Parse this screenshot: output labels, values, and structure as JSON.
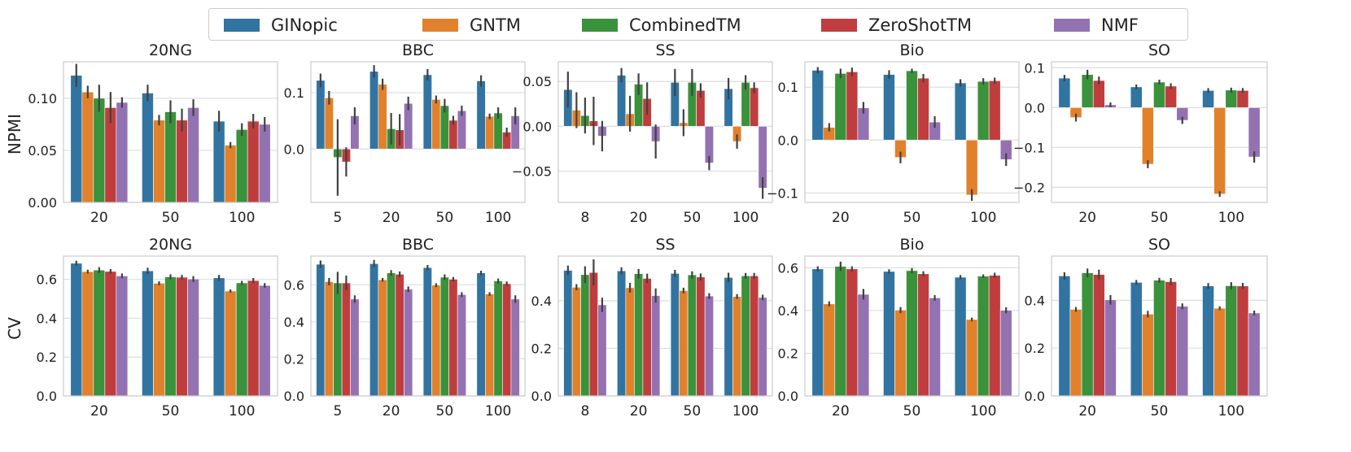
{
  "legend": {
    "entries": [
      {
        "label": "GINopic",
        "color": "#3274a1"
      },
      {
        "label": "GNTM",
        "color": "#e1812c"
      },
      {
        "label": "CombinedTM",
        "color": "#3a923a"
      },
      {
        "label": "ZeroShotTM",
        "color": "#c03d3e"
      },
      {
        "label": "NMF",
        "color": "#9372b2"
      }
    ]
  },
  "row_labels": [
    "NPMI",
    "CV"
  ],
  "chart_data": [
    {
      "type": "bar",
      "title": "20NG",
      "metric": "NPMI",
      "categories": [
        "20",
        "50",
        "100"
      ],
      "ylim": [
        0,
        0.135
      ],
      "yticks": [
        0.0,
        0.05,
        0.1
      ],
      "ytick_labels": [
        "0.00",
        "0.05",
        "0.10"
      ],
      "series": [
        {
          "name": "GINopic",
          "values": [
            0.122,
            0.105,
            0.078
          ],
          "err": [
            0.011,
            0.008,
            0.01
          ]
        },
        {
          "name": "GNTM",
          "values": [
            0.106,
            0.079,
            0.055
          ],
          "err": [
            0.006,
            0.005,
            0.003
          ]
        },
        {
          "name": "CombinedTM",
          "values": [
            0.1,
            0.087,
            0.07
          ],
          "err": [
            0.013,
            0.011,
            0.006
          ]
        },
        {
          "name": "ZeroShotTM",
          "values": [
            0.091,
            0.079,
            0.078
          ],
          "err": [
            0.015,
            0.011,
            0.007
          ]
        },
        {
          "name": "NMF",
          "values": [
            0.096,
            0.091,
            0.075
          ],
          "err": [
            0.005,
            0.008,
            0.007
          ]
        }
      ]
    },
    {
      "type": "bar",
      "title": "BBC",
      "metric": "NPMI",
      "categories": [
        "5",
        "20",
        "50",
        "100"
      ],
      "ylim": [
        -0.095,
        0.155
      ],
      "yticks": [
        0.0,
        0.1
      ],
      "ytick_labels": [
        "0.0",
        "0.1"
      ],
      "series": [
        {
          "name": "GINopic",
          "values": [
            0.122,
            0.138,
            0.132,
            0.121
          ],
          "err": [
            0.012,
            0.011,
            0.01,
            0.01
          ]
        },
        {
          "name": "GNTM",
          "values": [
            0.091,
            0.115,
            0.088,
            0.058
          ],
          "err": [
            0.012,
            0.01,
            0.007,
            0.005
          ]
        },
        {
          "name": "CombinedTM",
          "values": [
            -0.015,
            0.036,
            0.077,
            0.064
          ],
          "err": [
            0.068,
            0.028,
            0.012,
            0.01
          ]
        },
        {
          "name": "ZeroShotTM",
          "values": [
            -0.023,
            0.034,
            0.051,
            0.03
          ],
          "err": [
            0.026,
            0.028,
            0.008,
            0.008
          ]
        },
        {
          "name": "NMF",
          "values": [
            0.059,
            0.081,
            0.068,
            0.059
          ],
          "err": [
            0.015,
            0.012,
            0.009,
            0.015
          ]
        }
      ]
    },
    {
      "type": "bar",
      "title": "SS",
      "metric": "NPMI",
      "categories": [
        "8",
        "20",
        "50",
        "100"
      ],
      "ylim": [
        -0.085,
        0.072
      ],
      "yticks": [
        -0.05,
        0.0,
        0.05
      ],
      "ytick_labels": [
        "−0.05",
        "0.00",
        "0.05"
      ],
      "series": [
        {
          "name": "GINopic",
          "values": [
            0.041,
            0.057,
            0.049,
            0.042
          ],
          "err": [
            0.02,
            0.008,
            0.015,
            0.012
          ]
        },
        {
          "name": "GNTM",
          "values": [
            0.018,
            0.014,
            0.004,
            -0.017
          ],
          "err": [
            0.02,
            0.02,
            0.015,
            0.008
          ]
        },
        {
          "name": "CombinedTM",
          "values": [
            0.012,
            0.047,
            0.049,
            0.049
          ],
          "err": [
            0.02,
            0.012,
            0.015,
            0.008
          ]
        },
        {
          "name": "ZeroShotTM",
          "values": [
            0.006,
            0.031,
            0.04,
            0.043
          ],
          "err": [
            0.027,
            0.018,
            0.008,
            0.006
          ]
        },
        {
          "name": "NMF",
          "values": [
            -0.011,
            -0.017,
            -0.041,
            -0.069
          ],
          "err": [
            0.017,
            0.019,
            0.008,
            0.012
          ]
        }
      ]
    },
    {
      "type": "bar",
      "title": "Bio",
      "metric": "NPMI",
      "categories": [
        "20",
        "50",
        "100"
      ],
      "ylim": [
        -0.118,
        0.148
      ],
      "yticks": [
        -0.1,
        0.0,
        0.1
      ],
      "ytick_labels": [
        "−0.1",
        "0.0",
        "0.1"
      ],
      "series": [
        {
          "name": "GINopic",
          "values": [
            0.132,
            0.124,
            0.108
          ],
          "err": [
            0.006,
            0.008,
            0.007
          ]
        },
        {
          "name": "GNTM",
          "values": [
            0.024,
            -0.033,
            -0.104
          ],
          "err": [
            0.008,
            0.011,
            0.011
          ]
        },
        {
          "name": "CombinedTM",
          "values": [
            0.126,
            0.131,
            0.111
          ],
          "err": [
            0.009,
            0.004,
            0.006
          ]
        },
        {
          "name": "ZeroShotTM",
          "values": [
            0.129,
            0.117,
            0.112
          ],
          "err": [
            0.008,
            0.008,
            0.006
          ]
        },
        {
          "name": "NMF",
          "values": [
            0.061,
            0.034,
            -0.037
          ],
          "err": [
            0.011,
            0.011,
            0.012
          ]
        }
      ]
    },
    {
      "type": "bar",
      "title": "SO",
      "metric": "NPMI",
      "categories": [
        "20",
        "50",
        "100"
      ],
      "ylim": [
        -0.238,
        0.115
      ],
      "yticks": [
        -0.2,
        -0.1,
        0.0,
        0.1
      ],
      "ytick_labels": [
        "−0.2",
        "−0.1",
        "0.0",
        "0.1"
      ],
      "series": [
        {
          "name": "GINopic",
          "values": [
            0.074,
            0.052,
            0.043
          ],
          "err": [
            0.008,
            0.006,
            0.006
          ]
        },
        {
          "name": "GNTM",
          "values": [
            -0.025,
            -0.142,
            -0.217
          ],
          "err": [
            0.01,
            0.01,
            0.007
          ]
        },
        {
          "name": "CombinedTM",
          "values": [
            0.083,
            0.064,
            0.044
          ],
          "err": [
            0.012,
            0.006,
            0.006
          ]
        },
        {
          "name": "ZeroShotTM",
          "values": [
            0.068,
            0.054,
            0.043
          ],
          "err": [
            0.01,
            0.007,
            0.006
          ]
        },
        {
          "name": "NMF",
          "values": [
            0.007,
            -0.032,
            -0.124
          ],
          "err": [
            0.006,
            0.009,
            0.014
          ]
        }
      ]
    },
    {
      "type": "bar",
      "title": "20NG",
      "metric": "CV",
      "categories": [
        "20",
        "50",
        "100"
      ],
      "ylim": [
        0,
        0.72
      ],
      "yticks": [
        0.0,
        0.2,
        0.4,
        0.6
      ],
      "ytick_labels": [
        "0.0",
        "0.2",
        "0.4",
        "0.6"
      ],
      "series": [
        {
          "name": "GINopic",
          "values": [
            0.683,
            0.644,
            0.608
          ],
          "err": [
            0.013,
            0.016,
            0.015
          ]
        },
        {
          "name": "GNTM",
          "values": [
            0.64,
            0.58,
            0.54
          ],
          "err": [
            0.01,
            0.01,
            0.008
          ]
        },
        {
          "name": "CombinedTM",
          "values": [
            0.648,
            0.613,
            0.582
          ],
          "err": [
            0.015,
            0.013,
            0.01
          ]
        },
        {
          "name": "ZeroShotTM",
          "values": [
            0.641,
            0.611,
            0.594
          ],
          "err": [
            0.012,
            0.012,
            0.013
          ]
        },
        {
          "name": "NMF",
          "values": [
            0.618,
            0.602,
            0.569
          ],
          "err": [
            0.012,
            0.015,
            0.012
          ]
        }
      ]
    },
    {
      "type": "bar",
      "title": "BBC",
      "metric": "CV",
      "categories": [
        "5",
        "20",
        "50",
        "100"
      ],
      "ylim": [
        0,
        0.755
      ],
      "yticks": [
        0.0,
        0.2,
        0.4,
        0.6
      ],
      "ytick_labels": [
        "0.0",
        "0.2",
        "0.4",
        "0.6"
      ],
      "series": [
        {
          "name": "GINopic",
          "values": [
            0.711,
            0.714,
            0.693,
            0.664
          ],
          "err": [
            0.02,
            0.02,
            0.014,
            0.012
          ]
        },
        {
          "name": "GNTM",
          "values": [
            0.617,
            0.627,
            0.598,
            0.55
          ],
          "err": [
            0.02,
            0.01,
            0.01,
            0.01
          ]
        },
        {
          "name": "CombinedTM",
          "values": [
            0.61,
            0.664,
            0.641,
            0.621
          ],
          "err": [
            0.06,
            0.015,
            0.015,
            0.013
          ]
        },
        {
          "name": "ZeroShotTM",
          "values": [
            0.61,
            0.657,
            0.63,
            0.606
          ],
          "err": [
            0.04,
            0.015,
            0.012,
            0.012
          ]
        },
        {
          "name": "NMF",
          "values": [
            0.523,
            0.576,
            0.547,
            0.523
          ],
          "err": [
            0.02,
            0.015,
            0.013,
            0.02
          ]
        }
      ]
    },
    {
      "type": "bar",
      "title": "SS",
      "metric": "CV",
      "categories": [
        "8",
        "20",
        "50",
        "100"
      ],
      "ylim": [
        0,
        0.588
      ],
      "yticks": [
        0.0,
        0.2,
        0.4
      ],
      "ytick_labels": [
        "0.0",
        "0.2",
        "0.4"
      ],
      "series": [
        {
          "name": "GINopic",
          "values": [
            0.528,
            0.526,
            0.515,
            0.498
          ],
          "err": [
            0.02,
            0.015,
            0.015,
            0.02
          ]
        },
        {
          "name": "GNTM",
          "values": [
            0.457,
            0.455,
            0.443,
            0.418
          ],
          "err": [
            0.013,
            0.02,
            0.012,
            0.01
          ]
        },
        {
          "name": "CombinedTM",
          "values": [
            0.51,
            0.514,
            0.509,
            0.505
          ],
          "err": [
            0.035,
            0.02,
            0.015,
            0.012
          ]
        },
        {
          "name": "ZeroShotTM",
          "values": [
            0.519,
            0.494,
            0.5,
            0.505
          ],
          "err": [
            0.055,
            0.02,
            0.015,
            0.012
          ]
        },
        {
          "name": "NMF",
          "values": [
            0.383,
            0.422,
            0.42,
            0.414
          ],
          "err": [
            0.03,
            0.03,
            0.012,
            0.012
          ]
        }
      ]
    },
    {
      "type": "bar",
      "title": "Bio",
      "metric": "CV",
      "categories": [
        "20",
        "50",
        "100"
      ],
      "ylim": [
        0,
        0.655
      ],
      "yticks": [
        0.0,
        0.2,
        0.4,
        0.6
      ],
      "ytick_labels": [
        "0.0",
        "0.2",
        "0.4",
        "0.6"
      ],
      "series": [
        {
          "name": "GINopic",
          "values": [
            0.595,
            0.583,
            0.556
          ],
          "err": [
            0.012,
            0.01,
            0.01
          ]
        },
        {
          "name": "GNTM",
          "values": [
            0.431,
            0.402,
            0.358
          ],
          "err": [
            0.012,
            0.014,
            0.009
          ]
        },
        {
          "name": "CombinedTM",
          "values": [
            0.607,
            0.587,
            0.561
          ],
          "err": [
            0.022,
            0.012,
            0.008
          ]
        },
        {
          "name": "ZeroShotTM",
          "values": [
            0.595,
            0.572,
            0.565
          ],
          "err": [
            0.012,
            0.012,
            0.012
          ]
        },
        {
          "name": "NMF",
          "values": [
            0.476,
            0.459,
            0.401
          ],
          "err": [
            0.025,
            0.013,
            0.014
          ]
        }
      ]
    },
    {
      "type": "bar",
      "title": "SO",
      "metric": "CV",
      "categories": [
        "20",
        "50",
        "100"
      ],
      "ylim": [
        0,
        0.585
      ],
      "yticks": [
        0.0,
        0.2,
        0.4
      ],
      "ytick_labels": [
        "0.0",
        "0.2",
        "0.4"
      ],
      "series": [
        {
          "name": "GINopic",
          "values": [
            0.502,
            0.475,
            0.46
          ],
          "err": [
            0.015,
            0.01,
            0.012
          ]
        },
        {
          "name": "GNTM",
          "values": [
            0.362,
            0.342,
            0.367
          ],
          "err": [
            0.01,
            0.014,
            0.008
          ]
        },
        {
          "name": "CombinedTM",
          "values": [
            0.515,
            0.484,
            0.461
          ],
          "err": [
            0.018,
            0.01,
            0.015
          ]
        },
        {
          "name": "ZeroShotTM",
          "values": [
            0.508,
            0.478,
            0.46
          ],
          "err": [
            0.02,
            0.015,
            0.013
          ]
        },
        {
          "name": "NMF",
          "values": [
            0.402,
            0.375,
            0.347
          ],
          "err": [
            0.02,
            0.012,
            0.01
          ]
        }
      ]
    }
  ]
}
